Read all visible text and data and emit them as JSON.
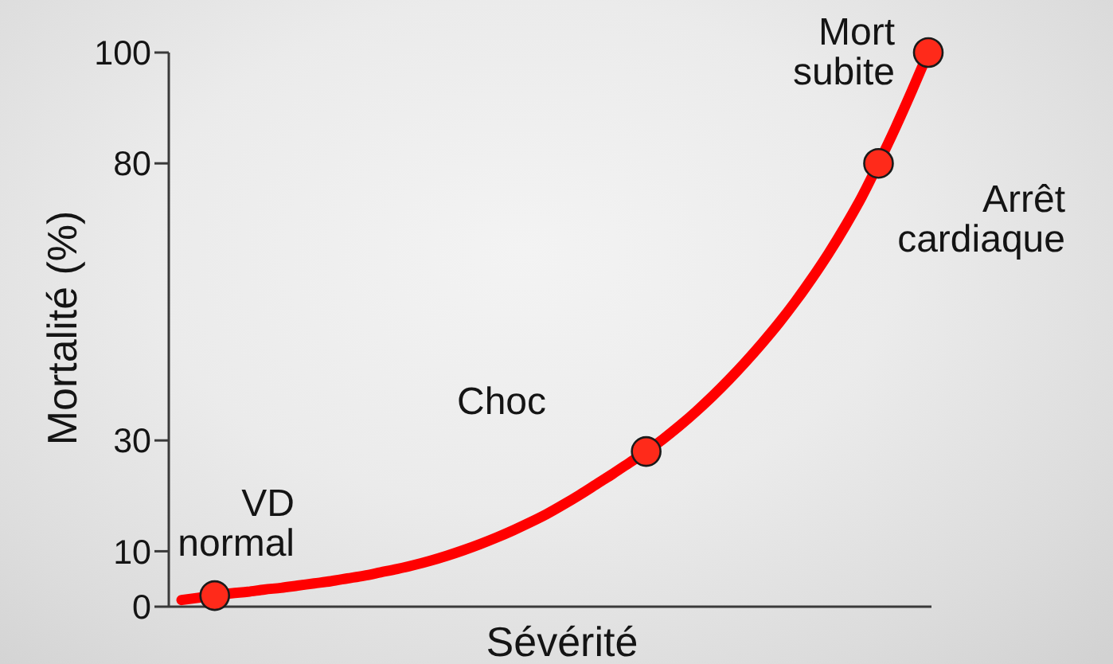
{
  "chart_data": {
    "type": "line",
    "xlabel": "Sévérité",
    "ylabel": "Mortalité (%)",
    "categories": [
      null,
      null,
      null,
      null,
      null,
      null,
      null,
      null,
      null,
      null,
      null,
      null,
      null,
      null,
      null,
      null,
      null,
      null,
      null,
      null,
      null,
      null,
      null,
      null,
      null,
      null,
      null,
      null,
      null,
      null,
      null,
      null,
      null,
      null,
      null,
      null,
      null,
      null,
      null,
      null,
      null,
      null,
      null,
      null,
      null,
      null
    ],
    "series": [
      {
        "color": "#ff0000",
        "marker": "none",
        "values": [
          1.2,
          1.6,
          2.0,
          2.4,
          2.7,
          3.1,
          3.4,
          3.8,
          4.2,
          4.6,
          5.1,
          5.6,
          6.2,
          6.8,
          7.5,
          8.3,
          9.2,
          10.2,
          11.3,
          12.5,
          13.8,
          15.2,
          16.7,
          18.4,
          20.2,
          22.1,
          24.0,
          26.0,
          28.0,
          30.2,
          32.6,
          35.2,
          38.0,
          41.0,
          44.2,
          47.6,
          51.2,
          55.1,
          59.3,
          63.8,
          68.7,
          74.0,
          80.0,
          86.3,
          93.0,
          100
        ]
      },
      {
        "type": "scatter",
        "color": "#ff2a1a",
        "marker": "circle",
        "values": [
          null,
          null,
          2,
          null,
          null,
          null,
          null,
          null,
          null,
          null,
          null,
          null,
          null,
          null,
          null,
          null,
          null,
          null,
          null,
          null,
          null,
          null,
          null,
          null,
          null,
          null,
          null,
          null,
          28,
          null,
          null,
          null,
          null,
          null,
          null,
          null,
          null,
          null,
          null,
          null,
          null,
          null,
          80,
          null,
          null,
          100
        ]
      }
    ],
    "ylim": [
      0,
      100
    ],
    "yticks": [
      0,
      10,
      30,
      80,
      100
    ],
    "annotations": [
      "VD normal",
      "Choc",
      "Arrêt cardiaque",
      "Mort subite"
    ]
  }
}
